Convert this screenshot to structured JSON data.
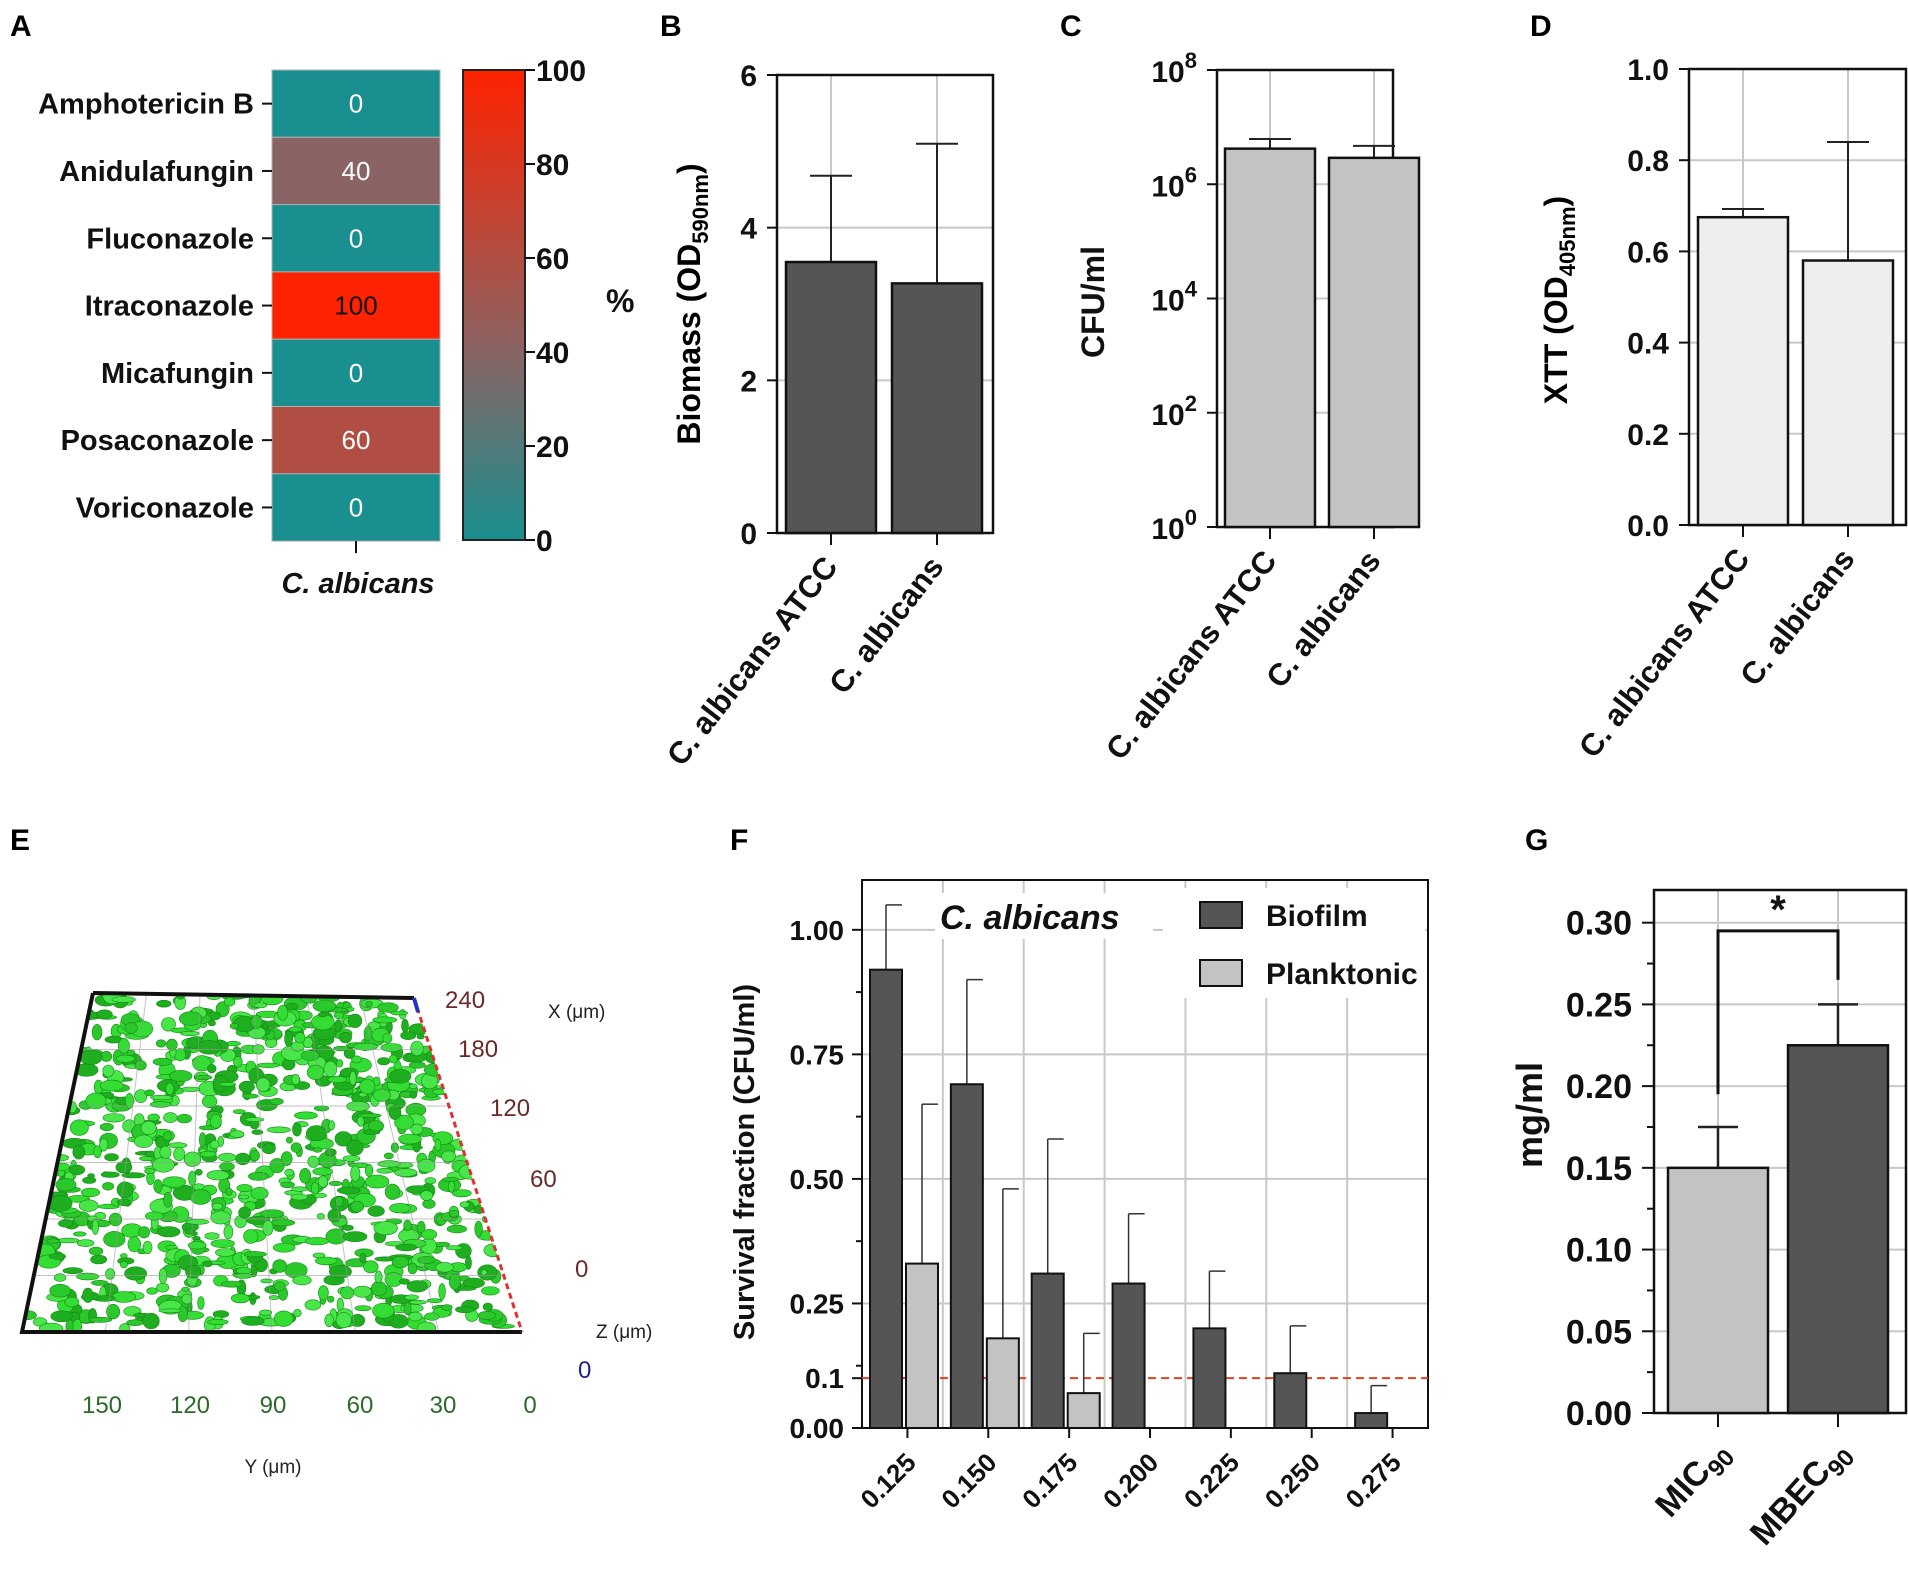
{
  "panel_labels": [
    "A",
    "B",
    "C",
    "D",
    "E",
    "F",
    "G"
  ],
  "colors": {
    "teal": "#1a8f8f",
    "red": "#ff2200",
    "dark_bar": "#555555",
    "mid_bar": "#c3c3c3",
    "light_bar": "#eeeeee",
    "grid": "#c8c8c8",
    "cutoff": "#e04020",
    "biofilm_green": "#33dd33"
  },
  "chart_data": [
    {
      "panel": "A",
      "type": "heatmap",
      "rows": [
        "Amphotericin B",
        "Anidulafungin",
        "Fluconazole",
        "Itraconazole",
        "Micafungin",
        "Posaconazole",
        "Voriconazole"
      ],
      "values": [
        0,
        40,
        0,
        100,
        0,
        60,
        0
      ],
      "column": "C. albicans",
      "colorbar": {
        "label": "%",
        "ticks": [
          0,
          20,
          40,
          60,
          80,
          100
        ],
        "range": [
          0,
          100
        ]
      }
    },
    {
      "panel": "B",
      "type": "bar",
      "ylabel_main": "Biomass (OD",
      "ylabel_sub": "590nm",
      "ylabel_end": ")",
      "ylim": [
        0,
        6
      ],
      "yticks": [
        0,
        2,
        4,
        6
      ],
      "categories": [
        "C. albicans ATCC",
        "C. albicans"
      ],
      "values": [
        3.55,
        3.27
      ],
      "errors": [
        1.13,
        1.83
      ]
    },
    {
      "panel": "C",
      "type": "bar",
      "scale": "log10",
      "ylabel": "CFU/ml",
      "yticks_exp": [
        0,
        2,
        4,
        6,
        8
      ],
      "tick_base": "10",
      "categories": [
        "C. albicans ATCC",
        "C. albicans"
      ],
      "values": [
        4200000,
        2900000
      ],
      "error_tops": [
        6200000,
        4700000
      ]
    },
    {
      "panel": "D",
      "type": "bar",
      "ylabel_main": "XTT (OD",
      "ylabel_sub": "405nm",
      "ylabel_end": ")",
      "ylim": [
        0,
        1.0
      ],
      "yticks": [
        "0.0",
        "0.2",
        "0.4",
        "0.6",
        "0.8",
        "1.0"
      ],
      "categories": [
        "C. albicans ATCC",
        "C. albicans"
      ],
      "values": [
        0.675,
        0.58
      ],
      "errors": [
        0.018,
        0.26
      ]
    },
    {
      "panel": "F",
      "type": "bar",
      "title": "C. albicans",
      "ylabel": "Survival fraction (CFU/ml)",
      "ylim": [
        0,
        1.1
      ],
      "yticks": [
        "0.00",
        "0.1",
        "0.25",
        "0.50",
        "0.75",
        "1.00"
      ],
      "ytick_values": [
        0,
        0.1,
        0.25,
        0.5,
        0.75,
        1.0
      ],
      "categories": [
        "0.125",
        "0.150",
        "0.175",
        "0.200",
        "0.225",
        "0.250",
        "0.275"
      ],
      "reference_line": 0.1,
      "series": [
        {
          "name": "Biofilm",
          "values": [
            0.92,
            0.69,
            0.31,
            0.29,
            0.2,
            0.11,
            0.03
          ],
          "errors": [
            0.13,
            0.21,
            0.27,
            0.14,
            0.115,
            0.095,
            0.055
          ]
        },
        {
          "name": "Planktonic",
          "values": [
            0.33,
            0.18,
            0.07,
            null,
            null,
            null,
            null
          ],
          "errors": [
            0.32,
            0.3,
            0.12,
            null,
            null,
            null,
            null
          ]
        }
      ]
    },
    {
      "panel": "G",
      "type": "bar",
      "ylabel": "mg/ml",
      "ylim": [
        0,
        0.32
      ],
      "yticks": [
        "0.00",
        "0.05",
        "0.10",
        "0.15",
        "0.20",
        "0.25",
        "0.30"
      ],
      "ytick_values": [
        0,
        0.05,
        0.1,
        0.15,
        0.2,
        0.25,
        0.3
      ],
      "categories": [
        {
          "main": "MIC",
          "sub": "90"
        },
        {
          "main": "MBEC",
          "sub": "90"
        }
      ],
      "values": [
        0.15,
        0.225
      ],
      "errors": [
        0.025,
        0.025
      ],
      "significance": "*"
    }
  ],
  "panel_e": {
    "x_axis_label": "X (μm)",
    "x_ticks": [
      "240",
      "180",
      "120",
      "60",
      "0"
    ],
    "z_axis_label": "Z (μm)",
    "z_tick": "0",
    "y_axis_label": "Y (μm)",
    "y_ticks": [
      "150",
      "120",
      "90",
      "60",
      "30",
      "0"
    ]
  }
}
